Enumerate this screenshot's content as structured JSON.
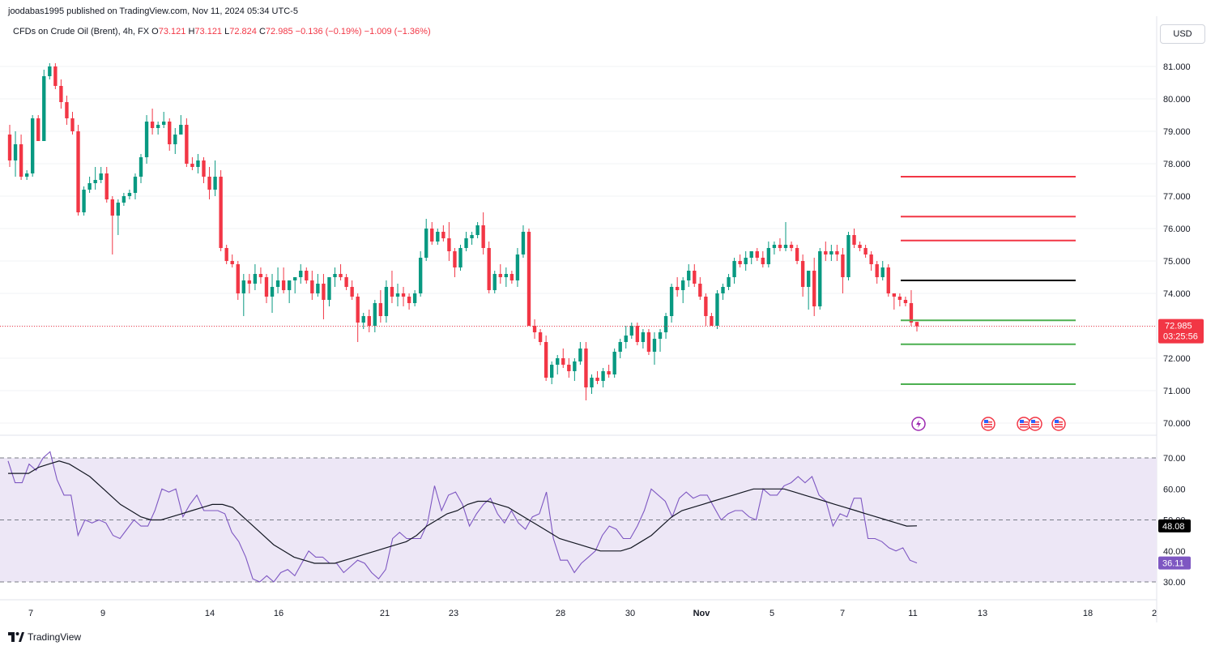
{
  "header": {
    "published_by": "joodabas1995 published on TradingView.com, Nov 11, 2024 05:34 UTC-5"
  },
  "legend": {
    "symbol": "CFDs on Crude Oil (Brent), 4h, FX",
    "open_label": "O",
    "open": "73.121",
    "high_label": "H",
    "high": "73.121",
    "low_label": "L",
    "low": "72.824",
    "close_label": "C",
    "close": "72.985",
    "change": "−0.136 (−0.19%)",
    "change2": "−1.009 (−1.36%)"
  },
  "currency_button": "USD",
  "price_badge": {
    "price": "72.985",
    "countdown": "03:25:56"
  },
  "rsi_badges": {
    "ma": "48.08",
    "rsi": "36.11"
  },
  "brand": {
    "name": "TradingView",
    "logo_icon": "tradingview-logo-icon"
  },
  "event_icons": [
    "lightning-icon",
    "us-flag-icon",
    "us-flag-icon",
    "us-flag-icon",
    "us-flag-icon"
  ],
  "colors": {
    "up": "#089981",
    "down": "#f23645",
    "rsi": "#7e57c2",
    "rsi_band": "#ede7f6",
    "ma": "#131722"
  },
  "chart_data": [
    {
      "type": "candlestick",
      "timeframe": "4h",
      "ylim": [
        69.7,
        81.8
      ],
      "y_ticks": [
        "81.000",
        "80.000",
        "79.000",
        "78.000",
        "77.000",
        "76.000",
        "75.000",
        "74.000",
        "73.000",
        "72.000",
        "71.000",
        "70.000"
      ],
      "x_ticks": [
        "7",
        "9",
        "14",
        "16",
        "21",
        "23",
        "28",
        "30",
        "Nov",
        "5",
        "7",
        "11",
        "13",
        "18",
        "2"
      ],
      "current_price": 72.985,
      "ohlc": [
        [
          78.9,
          79.2,
          77.9,
          78.1
        ],
        [
          78.1,
          79.0,
          77.6,
          78.6
        ],
        [
          78.6,
          78.9,
          77.5,
          77.6
        ],
        [
          77.6,
          77.8,
          77.5,
          77.7
        ],
        [
          77.7,
          79.5,
          77.6,
          79.4
        ],
        [
          79.4,
          79.5,
          78.7,
          78.7
        ],
        [
          78.7,
          80.9,
          78.7,
          80.7
        ],
        [
          80.7,
          81.1,
          80.6,
          81.0
        ],
        [
          81.0,
          81.1,
          80.3,
          80.4
        ],
        [
          80.4,
          80.6,
          79.7,
          79.9
        ],
        [
          79.9,
          80.1,
          79.2,
          79.4
        ],
        [
          79.4,
          79.6,
          78.9,
          79.0
        ],
        [
          79.0,
          79.2,
          76.4,
          76.5
        ],
        [
          76.5,
          77.3,
          76.4,
          77.2
        ],
        [
          77.2,
          77.6,
          77.1,
          77.4
        ],
        [
          77.4,
          77.9,
          77.2,
          77.5
        ],
        [
          77.5,
          77.9,
          77.4,
          77.7
        ],
        [
          77.7,
          77.9,
          76.8,
          76.9
        ],
        [
          76.9,
          77.0,
          75.2,
          76.4
        ],
        [
          76.4,
          76.9,
          75.8,
          76.8
        ],
        [
          76.8,
          77.1,
          76.7,
          77.0
        ],
        [
          77.0,
          77.2,
          76.9,
          77.1
        ],
        [
          77.1,
          77.7,
          76.9,
          77.6
        ],
        [
          77.6,
          78.3,
          77.4,
          78.2
        ],
        [
          78.2,
          79.5,
          78.0,
          79.3
        ],
        [
          79.3,
          79.7,
          78.9,
          79.1
        ],
        [
          79.1,
          79.3,
          78.9,
          79.2
        ],
        [
          79.2,
          79.6,
          79.1,
          79.3
        ],
        [
          79.3,
          79.4,
          78.4,
          78.6
        ],
        [
          78.6,
          79.1,
          78.3,
          78.9
        ],
        [
          78.9,
          79.5,
          78.9,
          79.2
        ],
        [
          79.2,
          79.4,
          77.9,
          78.0
        ],
        [
          78.0,
          78.2,
          77.8,
          77.9
        ],
        [
          77.9,
          78.3,
          77.7,
          78.1
        ],
        [
          78.1,
          78.2,
          77.4,
          77.6
        ],
        [
          77.6,
          77.9,
          76.9,
          77.2
        ],
        [
          77.2,
          78.1,
          77.0,
          77.6
        ],
        [
          77.6,
          77.8,
          75.3,
          75.4
        ],
        [
          75.4,
          75.5,
          74.9,
          75.0
        ],
        [
          75.0,
          75.2,
          74.8,
          74.9
        ],
        [
          74.9,
          75.0,
          73.8,
          74.0
        ],
        [
          74.0,
          74.6,
          73.3,
          74.4
        ],
        [
          74.4,
          74.6,
          74.0,
          74.3
        ],
        [
          74.3,
          74.9,
          74.1,
          74.6
        ],
        [
          74.6,
          74.8,
          74.3,
          74.5
        ],
        [
          74.5,
          74.6,
          73.7,
          73.9
        ],
        [
          73.9,
          74.6,
          73.4,
          74.2
        ],
        [
          74.2,
          74.8,
          74.0,
          74.4
        ],
        [
          74.4,
          74.8,
          74.0,
          74.1
        ],
        [
          74.1,
          74.3,
          73.7,
          74.4
        ],
        [
          74.4,
          74.5,
          74.0,
          74.5
        ],
        [
          74.5,
          74.9,
          74.3,
          74.7
        ],
        [
          74.7,
          74.8,
          74.3,
          74.4
        ],
        [
          74.4,
          74.7,
          73.8,
          74.0
        ],
        [
          74.0,
          74.6,
          73.9,
          74.3
        ],
        [
          74.3,
          74.6,
          73.2,
          73.8
        ],
        [
          73.8,
          74.5,
          73.6,
          74.5
        ],
        [
          74.5,
          74.8,
          74.2,
          74.6
        ],
        [
          74.6,
          74.9,
          74.4,
          74.5
        ],
        [
          74.5,
          74.6,
          74.1,
          74.2
        ],
        [
          74.2,
          74.4,
          73.8,
          73.9
        ],
        [
          73.9,
          74.0,
          72.5,
          73.1
        ],
        [
          73.1,
          73.4,
          72.9,
          73.3
        ],
        [
          73.3,
          73.5,
          72.8,
          73.0
        ],
        [
          73.0,
          73.8,
          72.8,
          73.7
        ],
        [
          73.7,
          74.1,
          73.1,
          73.3
        ],
        [
          73.3,
          74.4,
          73.1,
          74.2
        ],
        [
          74.2,
          74.7,
          73.7,
          73.9
        ],
        [
          73.9,
          74.3,
          73.6,
          74.0
        ],
        [
          74.0,
          74.2,
          73.6,
          73.9
        ],
        [
          73.9,
          74.0,
          73.5,
          73.7
        ],
        [
          73.7,
          74.1,
          73.6,
          74.0
        ],
        [
          74.0,
          75.3,
          73.9,
          75.1
        ],
        [
          75.1,
          76.3,
          75.0,
          76.0
        ],
        [
          76.0,
          76.2,
          75.5,
          75.6
        ],
        [
          75.6,
          76.0,
          75.5,
          75.9
        ],
        [
          75.9,
          76.1,
          75.6,
          75.7
        ],
        [
          75.7,
          76.2,
          75.0,
          75.3
        ],
        [
          75.3,
          75.4,
          74.5,
          74.8
        ],
        [
          74.8,
          75.5,
          74.7,
          75.4
        ],
        [
          75.4,
          75.9,
          75.3,
          75.7
        ],
        [
          75.7,
          75.9,
          75.5,
          75.8
        ],
        [
          75.8,
          76.2,
          75.7,
          76.1
        ],
        [
          76.1,
          76.5,
          75.2,
          75.4
        ],
        [
          75.4,
          75.6,
          74.0,
          74.1
        ],
        [
          74.1,
          74.7,
          74.0,
          74.6
        ],
        [
          74.6,
          74.9,
          74.3,
          74.5
        ],
        [
          74.5,
          74.8,
          74.2,
          74.6
        ],
        [
          74.6,
          74.7,
          74.3,
          74.4
        ],
        [
          74.4,
          75.4,
          74.2,
          75.2
        ],
        [
          75.2,
          76.1,
          75.1,
          75.9
        ],
        [
          75.9,
          76.0,
          73.0,
          73.0
        ],
        [
          73.0,
          73.2,
          72.6,
          72.8
        ],
        [
          72.8,
          72.9,
          72.4,
          72.5
        ],
        [
          72.5,
          72.7,
          71.3,
          71.4
        ],
        [
          71.4,
          71.9,
          71.2,
          71.8
        ],
        [
          71.8,
          72.1,
          71.5,
          72.0
        ],
        [
          72.0,
          72.3,
          71.7,
          71.8
        ],
        [
          71.8,
          72.0,
          71.4,
          71.6
        ],
        [
          71.6,
          72.0,
          71.3,
          71.9
        ],
        [
          71.9,
          72.5,
          71.8,
          72.3
        ],
        [
          72.3,
          72.5,
          70.7,
          71.1
        ],
        [
          71.1,
          71.5,
          70.9,
          71.4
        ],
        [
          71.4,
          71.6,
          71.2,
          71.3
        ],
        [
          71.3,
          71.7,
          71.1,
          71.6
        ],
        [
          71.6,
          71.8,
          71.4,
          71.5
        ],
        [
          71.5,
          72.3,
          71.4,
          72.2
        ],
        [
          72.2,
          72.6,
          72.0,
          72.5
        ],
        [
          72.5,
          73.0,
          72.3,
          72.7
        ],
        [
          72.7,
          73.1,
          72.6,
          73.0
        ],
        [
          73.0,
          73.1,
          72.4,
          72.5
        ],
        [
          72.5,
          72.9,
          72.3,
          72.8
        ],
        [
          72.8,
          72.9,
          72.1,
          72.2
        ],
        [
          72.2,
          72.8,
          71.8,
          72.6
        ],
        [
          72.6,
          72.9,
          72.2,
          72.8
        ],
        [
          72.8,
          73.4,
          72.6,
          73.3
        ],
        [
          73.3,
          74.3,
          73.1,
          74.2
        ],
        [
          74.2,
          74.5,
          73.9,
          74.1
        ],
        [
          74.1,
          74.5,
          73.7,
          74.4
        ],
        [
          74.4,
          74.9,
          74.2,
          74.7
        ],
        [
          74.7,
          74.9,
          74.2,
          74.3
        ],
        [
          74.3,
          74.5,
          73.8,
          73.9
        ],
        [
          73.9,
          74.0,
          73.0,
          73.3
        ],
        [
          73.3,
          73.4,
          73.0,
          73.0
        ],
        [
          73.0,
          74.1,
          72.9,
          74.0
        ],
        [
          74.0,
          74.3,
          73.8,
          74.2
        ],
        [
          74.2,
          74.6,
          74.1,
          74.5
        ],
        [
          74.5,
          75.1,
          74.3,
          75.0
        ],
        [
          75.0,
          75.2,
          74.8,
          74.9
        ],
        [
          74.9,
          75.3,
          74.7,
          75.1
        ],
        [
          75.1,
          75.3,
          74.9,
          75.3
        ],
        [
          75.3,
          75.4,
          75.0,
          75.1
        ],
        [
          75.1,
          75.3,
          74.8,
          74.9
        ],
        [
          74.9,
          75.6,
          74.8,
          75.4
        ],
        [
          75.4,
          75.6,
          75.2,
          75.5
        ],
        [
          75.5,
          75.7,
          75.3,
          75.4
        ],
        [
          75.4,
          76.2,
          75.3,
          75.5
        ],
        [
          75.5,
          75.6,
          75.3,
          75.4
        ],
        [
          75.4,
          75.5,
          74.9,
          75.0
        ],
        [
          75.0,
          75.2,
          73.9,
          74.2
        ],
        [
          74.2,
          74.7,
          73.5,
          74.7
        ],
        [
          74.7,
          75.1,
          73.3,
          73.6
        ],
        [
          73.6,
          75.4,
          73.5,
          75.3
        ],
        [
          75.3,
          75.6,
          75.0,
          75.2
        ],
        [
          75.2,
          75.5,
          75.0,
          75.3
        ],
        [
          75.3,
          75.5,
          75.0,
          75.2
        ],
        [
          75.2,
          75.4,
          74.0,
          74.5
        ],
        [
          74.5,
          75.9,
          74.4,
          75.8
        ],
        [
          75.8,
          76.0,
          75.4,
          75.5
        ],
        [
          75.5,
          75.6,
          75.3,
          75.4
        ],
        [
          75.4,
          75.5,
          75.1,
          75.2
        ],
        [
          75.2,
          75.3,
          74.7,
          74.9
        ],
        [
          74.9,
          75.0,
          74.3,
          74.5
        ],
        [
          74.5,
          75.0,
          74.4,
          74.8
        ],
        [
          74.8,
          74.9,
          73.9,
          74.0
        ],
        [
          74.0,
          74.0,
          73.5,
          73.9
        ],
        [
          73.9,
          74.0,
          73.6,
          73.8
        ],
        [
          73.8,
          73.9,
          73.6,
          73.7
        ],
        [
          73.7,
          74.1,
          73.0,
          73.1
        ],
        [
          73.121,
          73.121,
          72.824,
          72.985
        ]
      ],
      "levels": [
        {
          "name": "resistance-3",
          "price": 77.6,
          "color": "#f23645"
        },
        {
          "name": "resistance-2",
          "price": 76.37,
          "color": "#f23645"
        },
        {
          "name": "resistance-1",
          "price": 75.63,
          "color": "#f23645"
        },
        {
          "name": "pivot",
          "price": 74.4,
          "color": "#000000"
        },
        {
          "name": "support-1",
          "price": 73.17,
          "color": "#4caf50"
        },
        {
          "name": "support-2",
          "price": 72.43,
          "color": "#4caf50"
        },
        {
          "name": "support-3",
          "price": 71.2,
          "color": "#4caf50"
        }
      ]
    },
    {
      "type": "line",
      "indicator": "RSI",
      "ylim": [
        27,
        72
      ],
      "y_ticks": [
        "70.00",
        "60.00",
        "50.00",
        "40.00",
        "30.00"
      ],
      "levels": [
        70,
        50,
        30
      ],
      "series": [
        {
          "values": [
            69,
            62,
            62,
            68,
            66,
            70,
            72,
            63,
            58,
            58,
            45,
            50,
            49,
            50,
            49,
            45,
            44,
            47,
            50,
            48,
            48,
            53,
            60,
            59,
            60,
            51,
            55,
            58,
            53,
            53,
            53,
            52,
            46,
            43,
            38,
            31,
            30,
            32,
            30,
            33,
            34,
            32,
            36,
            40,
            38,
            38,
            36,
            36,
            33,
            35,
            37,
            36,
            33,
            31,
            34,
            44,
            46,
            44,
            44,
            44,
            49,
            61,
            53,
            58,
            59,
            55,
            48,
            52,
            55,
            57,
            52,
            49,
            53,
            49,
            47,
            51,
            52,
            59,
            44,
            37,
            37,
            33,
            36,
            38,
            40,
            45,
            48,
            47,
            44,
            44,
            48,
            53,
            60,
            58,
            56,
            51,
            57,
            59,
            57,
            58,
            58,
            54,
            50,
            52,
            53,
            53,
            51,
            50,
            60,
            58,
            58,
            61,
            62,
            64,
            62,
            64,
            58,
            56,
            48,
            52,
            51,
            57,
            57,
            44,
            44,
            43,
            41,
            40,
            41,
            37,
            36.11
          ]
        },
        {
          "values": [
            65,
            65,
            65,
            67,
            68,
            69,
            68,
            66,
            64,
            61,
            58,
            55,
            53,
            51,
            50,
            50,
            51,
            52,
            53,
            54,
            55,
            55,
            54,
            51,
            48,
            45,
            42,
            40,
            38,
            37,
            36,
            36,
            36,
            37,
            38,
            39,
            40,
            41,
            42,
            43,
            45,
            48,
            50,
            52,
            53,
            55,
            56,
            56,
            55,
            54,
            52,
            50,
            48,
            46,
            44,
            43,
            42,
            41,
            40,
            40,
            40,
            41,
            43,
            45,
            48,
            51,
            53,
            54,
            55,
            56,
            57,
            58,
            59,
            60,
            60,
            60,
            60,
            59,
            58,
            57,
            56,
            55,
            54,
            53,
            52,
            51,
            50,
            49,
            48,
            48.08
          ]
        }
      ]
    }
  ]
}
